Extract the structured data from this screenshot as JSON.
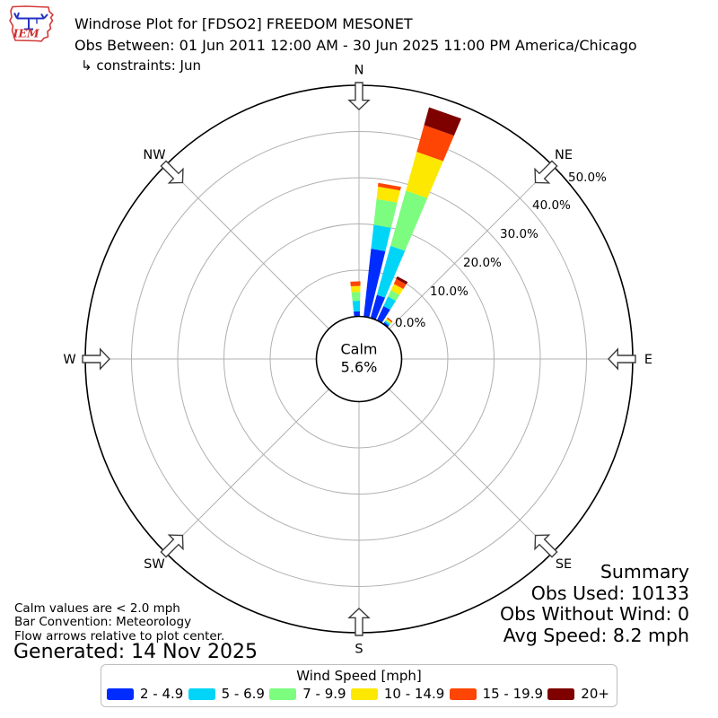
{
  "header": {
    "title": "Windrose Plot for [FDSO2] FREEDOM MESONET",
    "subtitle": "Obs Between: 01 Jun 2011 12:00 AM - 30 Jun 2025 11:00 PM America/Chicago",
    "constraints": "↳ constraints: Jun",
    "logo_text": "IEM"
  },
  "chart_data": {
    "type": "windrose",
    "title": "Windrose Plot for [FDSO2] FREEDOM MESONET",
    "units": "percent of time by wind speed bin [mph]",
    "compass_labels": [
      "N",
      "NE",
      "E",
      "SE",
      "S",
      "SW",
      "W",
      "NW"
    ],
    "compass_angles_deg": [
      0,
      45,
      90,
      135,
      180,
      225,
      270,
      315
    ],
    "ring_labels": [
      "0.0%",
      "10.0%",
      "20.0%",
      "30.0%",
      "40.0%",
      "50.0%"
    ],
    "ring_values_pct": [
      0,
      10,
      20,
      30,
      40,
      50
    ],
    "rmax_pct": 50,
    "grid": true,
    "calm": {
      "label": "Calm",
      "pct_label": "5.6%",
      "pct": 5.6
    },
    "speed_bins": [
      {
        "label": "2 - 4.9",
        "color": "#012cff"
      },
      {
        "label": "5 - 6.9",
        "color": "#00d5f7"
      },
      {
        "label": "7 - 9.9",
        "color": "#7cfd7f"
      },
      {
        "label": "10 - 14.9",
        "color": "#fde801"
      },
      {
        "label": "15 - 19.9",
        "color": "#ff4503"
      },
      {
        "label": "20+",
        "color": "#7e0100"
      }
    ],
    "bar_width_deg": 7.5,
    "petals": [
      {
        "direction_deg": 357.3,
        "segments_pct": [
          1.1,
          2.3,
          1.9,
          1.3,
          1.0,
          0
        ],
        "total_pct": 7.6
      },
      {
        "direction_deg": 10.0,
        "segments_pct": [
          14.8,
          5.2,
          5.6,
          2.7,
          0.8,
          0
        ],
        "total_pct": 29.1
      },
      {
        "direction_deg": 19.3,
        "segments_pct": [
          5.2,
          11.0,
          12.4,
          8.7,
          6.0,
          4.0
        ],
        "total_pct": 47.3
      },
      {
        "direction_deg": 28.6,
        "segments_pct": [
          3.4,
          2.3,
          1.5,
          1.5,
          1.2,
          0.6
        ],
        "total_pct": 10.5
      },
      {
        "direction_deg": 38.2,
        "segments_pct": [
          0.5,
          0.4,
          0.2,
          0.3,
          0.3,
          0
        ],
        "total_pct": 1.7
      }
    ]
  },
  "legend": {
    "title": "Wind Speed [mph]"
  },
  "notes": [
    "Calm values are < 2.0 mph",
    "Bar Convention: Meteorology",
    "Flow arrows relative to plot center."
  ],
  "generated": "Generated: 14 Nov 2025",
  "summary": {
    "title": "Summary",
    "obs_used": "Obs Used: 10133",
    "obs_without_wind": "Obs Without Wind: 0",
    "avg_speed": "Avg Speed: 8.2 mph"
  }
}
